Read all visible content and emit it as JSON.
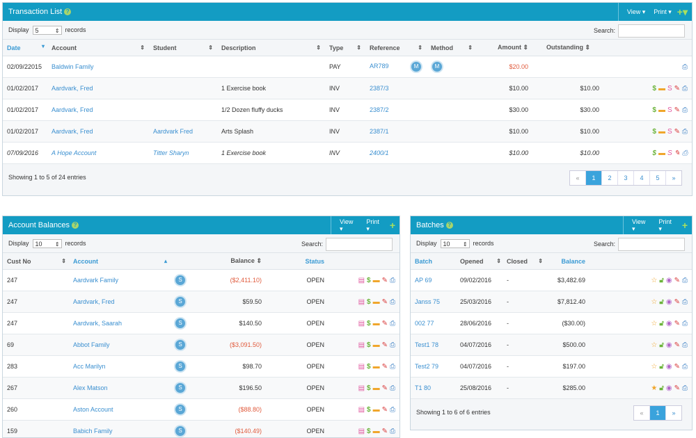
{
  "transaction_list": {
    "title": "Transaction List",
    "view_label": "View ▾",
    "print_label": "Print ▾",
    "plus_label": "+▾",
    "display_label": "Display",
    "display_value": "5",
    "records_label": "records",
    "search_label": "Search:",
    "columns": [
      "Date",
      "Account",
      "Student",
      "Description",
      "Type",
      "Reference",
      "Method",
      "Amount",
      "Outstanding"
    ],
    "rows": [
      {
        "date": "02/09/22015",
        "account": "Baldwin Family",
        "student": "",
        "description": "",
        "type": "PAY",
        "reference": "AR789",
        "ref_badge": "M",
        "method_badge": "M",
        "amount": "$20.00",
        "outstanding": "",
        "neg": true
      },
      {
        "date": "01/02/2017",
        "account": "Aardvark, Fred",
        "student": "",
        "description": "1 Exercise book",
        "type": "INV",
        "reference": "2387/3",
        "amount": "$10.00",
        "outstanding": "$10.00"
      },
      {
        "date": "01/02/2017",
        "account": "Aardvark, Fred",
        "student": "",
        "description": "1/2 Dozen fluffy ducks",
        "type": "INV",
        "reference": "2387/2",
        "amount": "$30.00",
        "outstanding": "$30.00"
      },
      {
        "date": "01/02/2017",
        "account": "Aardvark, Fred",
        "student": "Aardvark Fred",
        "description": "Arts Splash",
        "type": "INV",
        "reference": "2387/1",
        "amount": "$10.00",
        "outstanding": "$10.00"
      },
      {
        "date": "07/09/2016",
        "account": "A Hope Account",
        "student": "Titter Sharyn",
        "description": "1 Exercise book",
        "type": "INV",
        "reference": "2400/1",
        "amount": "$10.00",
        "outstanding": "$10.00"
      }
    ],
    "showing": "Showing 1 to 5 of 24 entries",
    "pages": [
      "«",
      "1",
      "2",
      "3",
      "4",
      "5",
      "»"
    ]
  },
  "account_balances": {
    "title": "Account Balances",
    "view_label": "View ▾",
    "print_label": "Print ▾",
    "plus_label": "+",
    "display_label": "Display",
    "display_value": "10",
    "records_label": "records",
    "search_label": "Search:",
    "columns": [
      "Cust No",
      "Account",
      "Balance",
      "Status"
    ],
    "rows": [
      {
        "cust": "247",
        "account": "Aardvark Family",
        "balance": "($2,411.10)",
        "status": "OPEN",
        "neg": true
      },
      {
        "cust": "247",
        "account": "Aardvark, Fred",
        "balance": "$59.50",
        "status": "OPEN"
      },
      {
        "cust": "247",
        "account": "Aardvark, Saarah",
        "balance": "$140.50",
        "status": "OPEN"
      },
      {
        "cust": "69",
        "account": "Abbot Family",
        "balance": "($3,091.50)",
        "status": "OPEN",
        "neg": true
      },
      {
        "cust": "283",
        "account": "Acc Marilyn",
        "balance": "$98.70",
        "status": "OPEN"
      },
      {
        "cust": "267",
        "account": "Alex Matson",
        "balance": "$196.50",
        "status": "OPEN"
      },
      {
        "cust": "260",
        "account": "Aston Account",
        "balance": "($88.80)",
        "status": "OPEN",
        "neg": true
      },
      {
        "cust": "159",
        "account": "Babich Family",
        "balance": "($140.49)",
        "status": "OPEN",
        "neg": true
      }
    ]
  },
  "batches": {
    "title": "Batches",
    "view_label": "View ▾",
    "print_label": "Print ▾",
    "plus_label": "+",
    "display_label": "Display",
    "display_value": "10",
    "records_label": "records",
    "search_label": "Search:",
    "columns": [
      "Batch",
      "Opened",
      "Closed",
      "Balance"
    ],
    "rows": [
      {
        "batch": "AP 69",
        "opened": "09/02/2016",
        "closed": "-",
        "balance": "$3,482.69"
      },
      {
        "batch": "Janss 75",
        "opened": "25/03/2016",
        "closed": "-",
        "balance": "$7,812.40"
      },
      {
        "batch": "002 77",
        "opened": "28/06/2016",
        "closed": "-",
        "balance": "($30.00)"
      },
      {
        "batch": "Test1 78",
        "opened": "04/07/2016",
        "closed": "-",
        "balance": "$500.00"
      },
      {
        "batch": "Test2 79",
        "opened": "04/07/2016",
        "closed": "-",
        "balance": "$197.00"
      },
      {
        "batch": "T1 80",
        "opened": "25/08/2016",
        "closed": "-",
        "balance": "$285.00",
        "starred": true
      }
    ],
    "showing": "Showing 1 to 6 of 6 entries",
    "pages": [
      "«",
      "1",
      "»"
    ]
  },
  "colors": {
    "header": "#139cc3",
    "link": "#3a8fd0",
    "negative": "#e05a3c"
  }
}
